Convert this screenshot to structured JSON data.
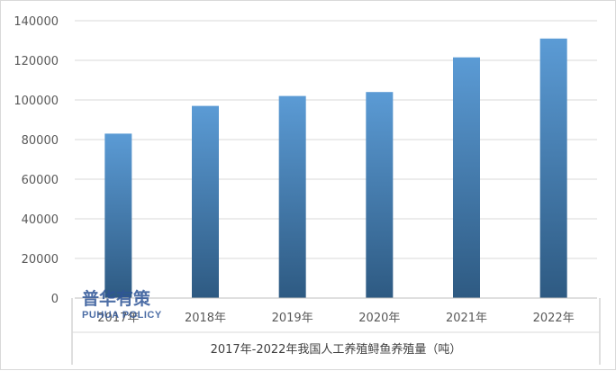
{
  "watermark": {
    "name_cn": "普华有策",
    "name_en": "PUHUA POLICY"
  },
  "colors": {
    "bar_top": "#5B9BD5",
    "bar_bottom": "#2E5A82",
    "grid": "#d9d9d9",
    "axis": "#bfbfbf",
    "watermark": "#2f5597"
  },
  "chart_data": {
    "type": "bar",
    "categories": [
      "2017年",
      "2018年",
      "2019年",
      "2020年",
      "2021年",
      "2022年"
    ],
    "values": [
      83000,
      97000,
      102000,
      104000,
      121500,
      131000
    ],
    "title": "",
    "xlabel": "2017年-2022年我国人工养殖鲟鱼养殖量（吨）",
    "ylabel": "",
    "ylim": [
      0,
      140000
    ],
    "yticks": [
      "0",
      "20000",
      "40000",
      "60000",
      "80000",
      "100000",
      "120000",
      "140000"
    ],
    "grid": true,
    "legend": "none"
  }
}
